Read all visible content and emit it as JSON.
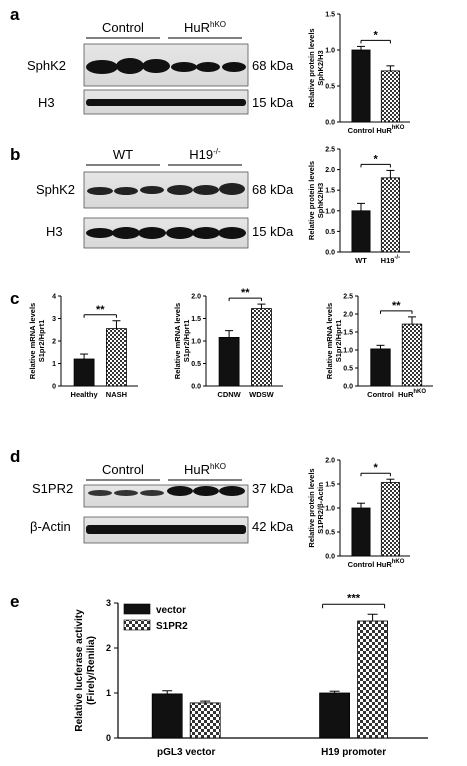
{
  "panels": {
    "a": "a",
    "b": "b",
    "c": "c",
    "d": "d",
    "e": "e"
  },
  "blots": {
    "a": {
      "group1": "Control",
      "group2_base": "HuR",
      "group2_sup": "hKO",
      "band1": "SphK2",
      "band1_kda": "68 kDa",
      "band2": "H3",
      "band2_kda": "15 kDa"
    },
    "b": {
      "group1": "WT",
      "group2_base": "H19",
      "group2_sup": "-/-",
      "band1": "SphK2",
      "band1_kda": "68 kDa",
      "band2": "H3",
      "band2_kda": "15 kDa"
    },
    "d": {
      "group1": "Control",
      "group2_base": "HuR",
      "group2_sup": "hKO",
      "band1": "S1PR2",
      "band1_kda": "37 kDa",
      "band2": "β-Actin",
      "band2_kda": "42 kDa"
    }
  },
  "chart_data": [
    {
      "id": "a",
      "type": "bar",
      "categories": [
        "Control",
        "HuR"
      ],
      "cat_sup": [
        "",
        "hKO"
      ],
      "values": [
        1.0,
        0.71
      ],
      "errors": [
        0.05,
        0.07
      ],
      "ylim": [
        0,
        1.5
      ],
      "yticks": [
        "0.0",
        "0.5",
        "1.0",
        "1.5"
      ],
      "ylabel_line1": "Relative protein levels",
      "ylabel_line2": "SphK2/H3",
      "significance": "*"
    },
    {
      "id": "b",
      "type": "bar",
      "categories": [
        "WT",
        "H19"
      ],
      "cat_sup": [
        "",
        "-/-"
      ],
      "values": [
        1.0,
        1.8
      ],
      "errors": [
        0.18,
        0.18
      ],
      "ylim": [
        0,
        2.5
      ],
      "yticks": [
        "0.0",
        "0.5",
        "1.0",
        "1.5",
        "2.0",
        "2.5"
      ],
      "ylabel_line1": "Relative protein levels",
      "ylabel_line2": "SphK2/H3",
      "significance": "*"
    },
    {
      "id": "c1",
      "type": "bar",
      "categories": [
        "Healthy",
        "NASH"
      ],
      "cat_sup": [
        "",
        ""
      ],
      "values": [
        1.2,
        2.55
      ],
      "errors": [
        0.22,
        0.35
      ],
      "ylim": [
        0,
        4
      ],
      "yticks": [
        "0",
        "1",
        "2",
        "3",
        "4"
      ],
      "ylabel_line1": "Relative mRNA levels",
      "ylabel_line2": "S1pr2/Hprt1",
      "significance": "**"
    },
    {
      "id": "c2",
      "type": "bar",
      "categories": [
        "CDNW",
        "WDSW"
      ],
      "cat_sup": [
        "",
        ""
      ],
      "values": [
        1.08,
        1.72
      ],
      "errors": [
        0.15,
        0.1
      ],
      "ylim": [
        0,
        2.0
      ],
      "yticks": [
        "0.0",
        "0.5",
        "1.0",
        "1.5",
        "2.0"
      ],
      "ylabel_line1": "Relative mRNA levels",
      "ylabel_line2": "S1pr2/Hprt1",
      "significance": "**"
    },
    {
      "id": "c3",
      "type": "bar",
      "categories": [
        "Control",
        "HuR"
      ],
      "cat_sup": [
        "",
        "hKO"
      ],
      "values": [
        1.03,
        1.72
      ],
      "errors": [
        0.1,
        0.2
      ],
      "ylim": [
        0,
        2.5
      ],
      "yticks": [
        "0.0",
        "0.5",
        "1.0",
        "1.5",
        "2.0",
        "2.5"
      ],
      "ylabel_line1": "Relative mRNA levels",
      "ylabel_line2": "S1pr2/Hprt1",
      "significance": "**"
    },
    {
      "id": "d",
      "type": "bar",
      "categories": [
        "Control",
        "HuR"
      ],
      "cat_sup": [
        "",
        "hKO"
      ],
      "values": [
        1.0,
        1.53
      ],
      "errors": [
        0.1,
        0.07
      ],
      "ylim": [
        0,
        2.0
      ],
      "yticks": [
        "0.0",
        "0.5",
        "1.0",
        "1.5",
        "2.0"
      ],
      "ylabel_line1": "Relative protein levels",
      "ylabel_line2": "S1PR2/β-Actin",
      "significance": "*"
    },
    {
      "id": "e",
      "type": "bar",
      "categories": [
        "pGL3 vector",
        "H19 promoter"
      ],
      "series": [
        {
          "name": "vector",
          "values": [
            0.98,
            1.0
          ],
          "errors": [
            0.07,
            0.04
          ]
        },
        {
          "name": "S1PR2",
          "values": [
            0.78,
            2.6
          ],
          "errors": [
            0.04,
            0.15
          ]
        }
      ],
      "ylim": [
        0,
        3
      ],
      "yticks": [
        "0",
        "1",
        "2",
        "3"
      ],
      "ylabel_line1": "Relative lucferase activity",
      "ylabel_line2": "(Firely/Renilia)",
      "significance": "***"
    }
  ]
}
